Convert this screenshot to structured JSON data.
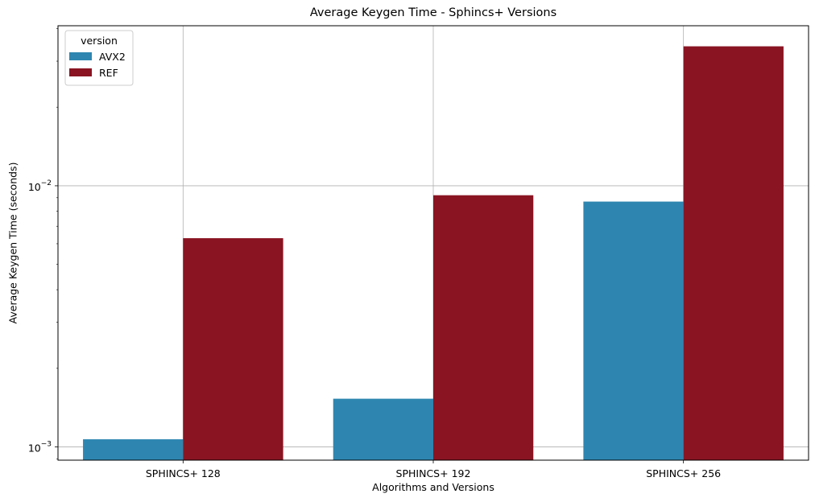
{
  "chart_data": {
    "type": "bar",
    "title": "Average Keygen Time - Sphincs+ Versions",
    "xlabel": "Algorithms and Versions",
    "ylabel": "Average Keygen Time (seconds)",
    "yscale": "log",
    "ylim": [
      0.00089,
      0.041
    ],
    "grid": true,
    "legend": {
      "title": "version",
      "placement": "top-left"
    },
    "categories": [
      "SPHINCS+ 128",
      "SPHINCS+ 192",
      "SPHINCS+ 256"
    ],
    "series": [
      {
        "name": "AVX2",
        "color": "#2e86b0",
        "values": [
          0.00107,
          0.00153,
          0.0087
        ]
      },
      {
        "name": "REF",
        "color": "#8a1422",
        "values": [
          0.0063,
          0.0092,
          0.0342
        ]
      }
    ],
    "yticks": [
      {
        "value": 0.001,
        "base": "10",
        "exp": "−3"
      },
      {
        "value": 0.01,
        "base": "10",
        "exp": "−2"
      }
    ]
  }
}
